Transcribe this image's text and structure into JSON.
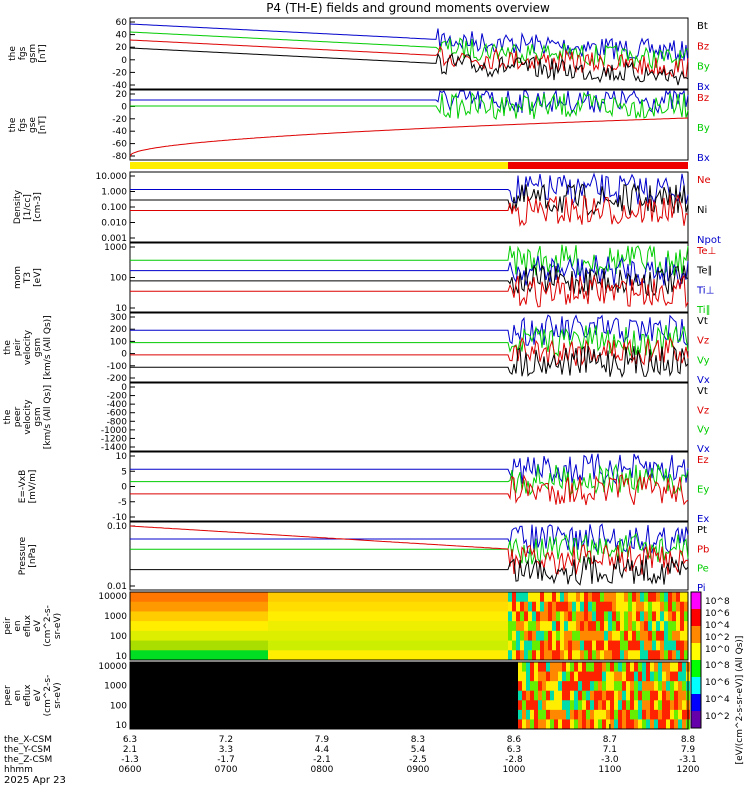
{
  "title": "P4 (TH-E) fields and ground moments overview",
  "date_label": "2025 Apr 23",
  "colors": {
    "black": "#000000",
    "red": "#dd0000",
    "green": "#00cc00",
    "blue": "#0000cc",
    "yellow": "#ffee00",
    "bar_red": "#ee0000",
    "purple": "#6600aa"
  },
  "chart_data": [
    {
      "type": "line",
      "id": "fgs_gsm",
      "ylabel": [
        "the",
        "fgs",
        "gsm",
        "[nT]"
      ],
      "yticks": [
        60,
        40,
        20,
        0,
        -20,
        -40
      ],
      "ylim": [
        -45,
        65
      ],
      "legend": [
        {
          "name": "Bt",
          "color": "black"
        },
        {
          "name": "Bz",
          "color": "red"
        },
        {
          "name": "By",
          "color": "green"
        },
        {
          "name": "Bx",
          "color": "blue"
        }
      ]
    },
    {
      "type": "line",
      "id": "fgs_gse",
      "ylabel": [
        "the",
        "fgs",
        "gse",
        "[nT]"
      ],
      "yticks": [
        20,
        0,
        -20,
        -40,
        -60,
        -80
      ],
      "ylim": [
        -90,
        30
      ],
      "legend": [
        {
          "name": "Bz",
          "color": "red"
        },
        {
          "name": "By",
          "color": "green"
        },
        {
          "name": "Bx",
          "color": "blue"
        }
      ]
    },
    {
      "type": "line",
      "id": "density",
      "scale": "log",
      "ylabel": [
        "Density",
        "[1/cc]",
        "[cm-3]"
      ],
      "yticks": [
        "10.000",
        "1.000",
        "0.100",
        "0.010",
        "0.001"
      ],
      "ylim": [
        0.0005,
        25
      ],
      "legend": [
        {
          "name": "Ne",
          "color": "red"
        },
        {
          "name": "Ni",
          "color": "black"
        },
        {
          "name": "Npot",
          "color": "blue"
        }
      ]
    },
    {
      "type": "line",
      "id": "temperature",
      "scale": "log",
      "ylabel": [
        "mom",
        "T3",
        "[eV]"
      ],
      "yticks": [
        "1000",
        "100",
        "10"
      ],
      "ylim": [
        5,
        5000
      ],
      "legend": [
        {
          "name": "Te⊥",
          "color": "red"
        },
        {
          "name": "Te∥",
          "color": "black"
        },
        {
          "name": "Ti⊥",
          "color": "blue"
        },
        {
          "name": "Ti∥",
          "color": "green"
        }
      ]
    },
    {
      "type": "line",
      "id": "peir_velocity",
      "ylabel": [
        "the",
        "peir",
        "velocity",
        "gsm",
        "[km/s (All Qs)]"
      ],
      "yticks": [
        300,
        200,
        100,
        0,
        -100,
        -200
      ],
      "ylim": [
        -260,
        340
      ],
      "legend": [
        {
          "name": "Vt",
          "color": "black"
        },
        {
          "name": "Vz",
          "color": "red"
        },
        {
          "name": "Vy",
          "color": "green"
        },
        {
          "name": "Vx",
          "color": "blue"
        }
      ]
    },
    {
      "type": "line",
      "id": "peer_velocity",
      "ylabel": [
        "the",
        "peer",
        "velocity",
        "gsm",
        "[km/s (All Qs)]"
      ],
      "yticks": [
        0,
        -200,
        -400,
        -600,
        -800,
        -1000,
        -1200,
        -1400
      ],
      "ylim": [
        -1480,
        60
      ],
      "legend": [
        {
          "name": "Vt",
          "color": "black"
        },
        {
          "name": "Vz",
          "color": "red"
        },
        {
          "name": "Vy",
          "color": "green"
        },
        {
          "name": "Vx",
          "color": "blue"
        }
      ]
    },
    {
      "type": "line",
      "id": "efield",
      "ylabel": [
        "E=-VxB",
        "[mV/m]"
      ],
      "yticks": [
        10,
        5,
        0,
        -5,
        -10
      ],
      "ylim": [
        -11,
        11
      ],
      "legend": [
        {
          "name": "Ez",
          "color": "red"
        },
        {
          "name": "Ey",
          "color": "green"
        },
        {
          "name": "Ex",
          "color": "blue"
        }
      ]
    },
    {
      "type": "line",
      "id": "pressure",
      "scale": "log",
      "ylabel": [
        "Pressure",
        "[nPa]"
      ],
      "yticks": [
        "0.10",
        "0.01"
      ],
      "ylim": [
        0.001,
        1.2
      ],
      "legend": [
        {
          "name": "Pt",
          "color": "black"
        },
        {
          "name": "Pb",
          "color": "red"
        },
        {
          "name": "Pe",
          "color": "green"
        },
        {
          "name": "Pi",
          "color": "blue"
        }
      ]
    },
    {
      "type": "heatmap",
      "id": "peir_spec",
      "ylabel": [
        "the",
        "peir",
        "en",
        "eflux",
        "eV",
        "(cm^2-s-",
        "sr-eV)"
      ],
      "yticks": [
        "10000",
        "1000",
        "100",
        "10"
      ]
    },
    {
      "type": "heatmap",
      "id": "peer_spec",
      "ylabel": [
        "the",
        "peer",
        "en",
        "eflux",
        "eV",
        "(cm^2-s-",
        "sr-eV)"
      ],
      "yticks": [
        "10000",
        "1000",
        "100",
        "10"
      ]
    }
  ],
  "colorbar": {
    "label": "[eV/(cm^2-s-sr-eV)] (All Qs)]",
    "ticks_top": [
      "10^8",
      "10^6",
      "10^4",
      "10^2",
      "10^0"
    ],
    "ticks_bottom": [
      "10^8",
      "10^6",
      "10^4",
      "10^2"
    ]
  },
  "xaxis": {
    "rows": [
      {
        "label": "the_X-CSM",
        "values": [
          "6.3",
          "7.2",
          "7.9",
          "8.3",
          "8.6",
          "8.7",
          "8.8"
        ]
      },
      {
        "label": "the_Y-CSM",
        "values": [
          "2.1",
          "3.3",
          "4.4",
          "5.4",
          "6.3",
          "7.1",
          "7.9"
        ]
      },
      {
        "label": "the_Z-CSM",
        "values": [
          "-1.3",
          "-1.7",
          "-2.1",
          "-2.5",
          "-2.8",
          "-3.0",
          "-3.1"
        ]
      },
      {
        "label": "hhmm",
        "values": [
          "0600",
          "0700",
          "0800",
          "0900",
          "1000",
          "1100",
          "1200"
        ]
      }
    ]
  }
}
